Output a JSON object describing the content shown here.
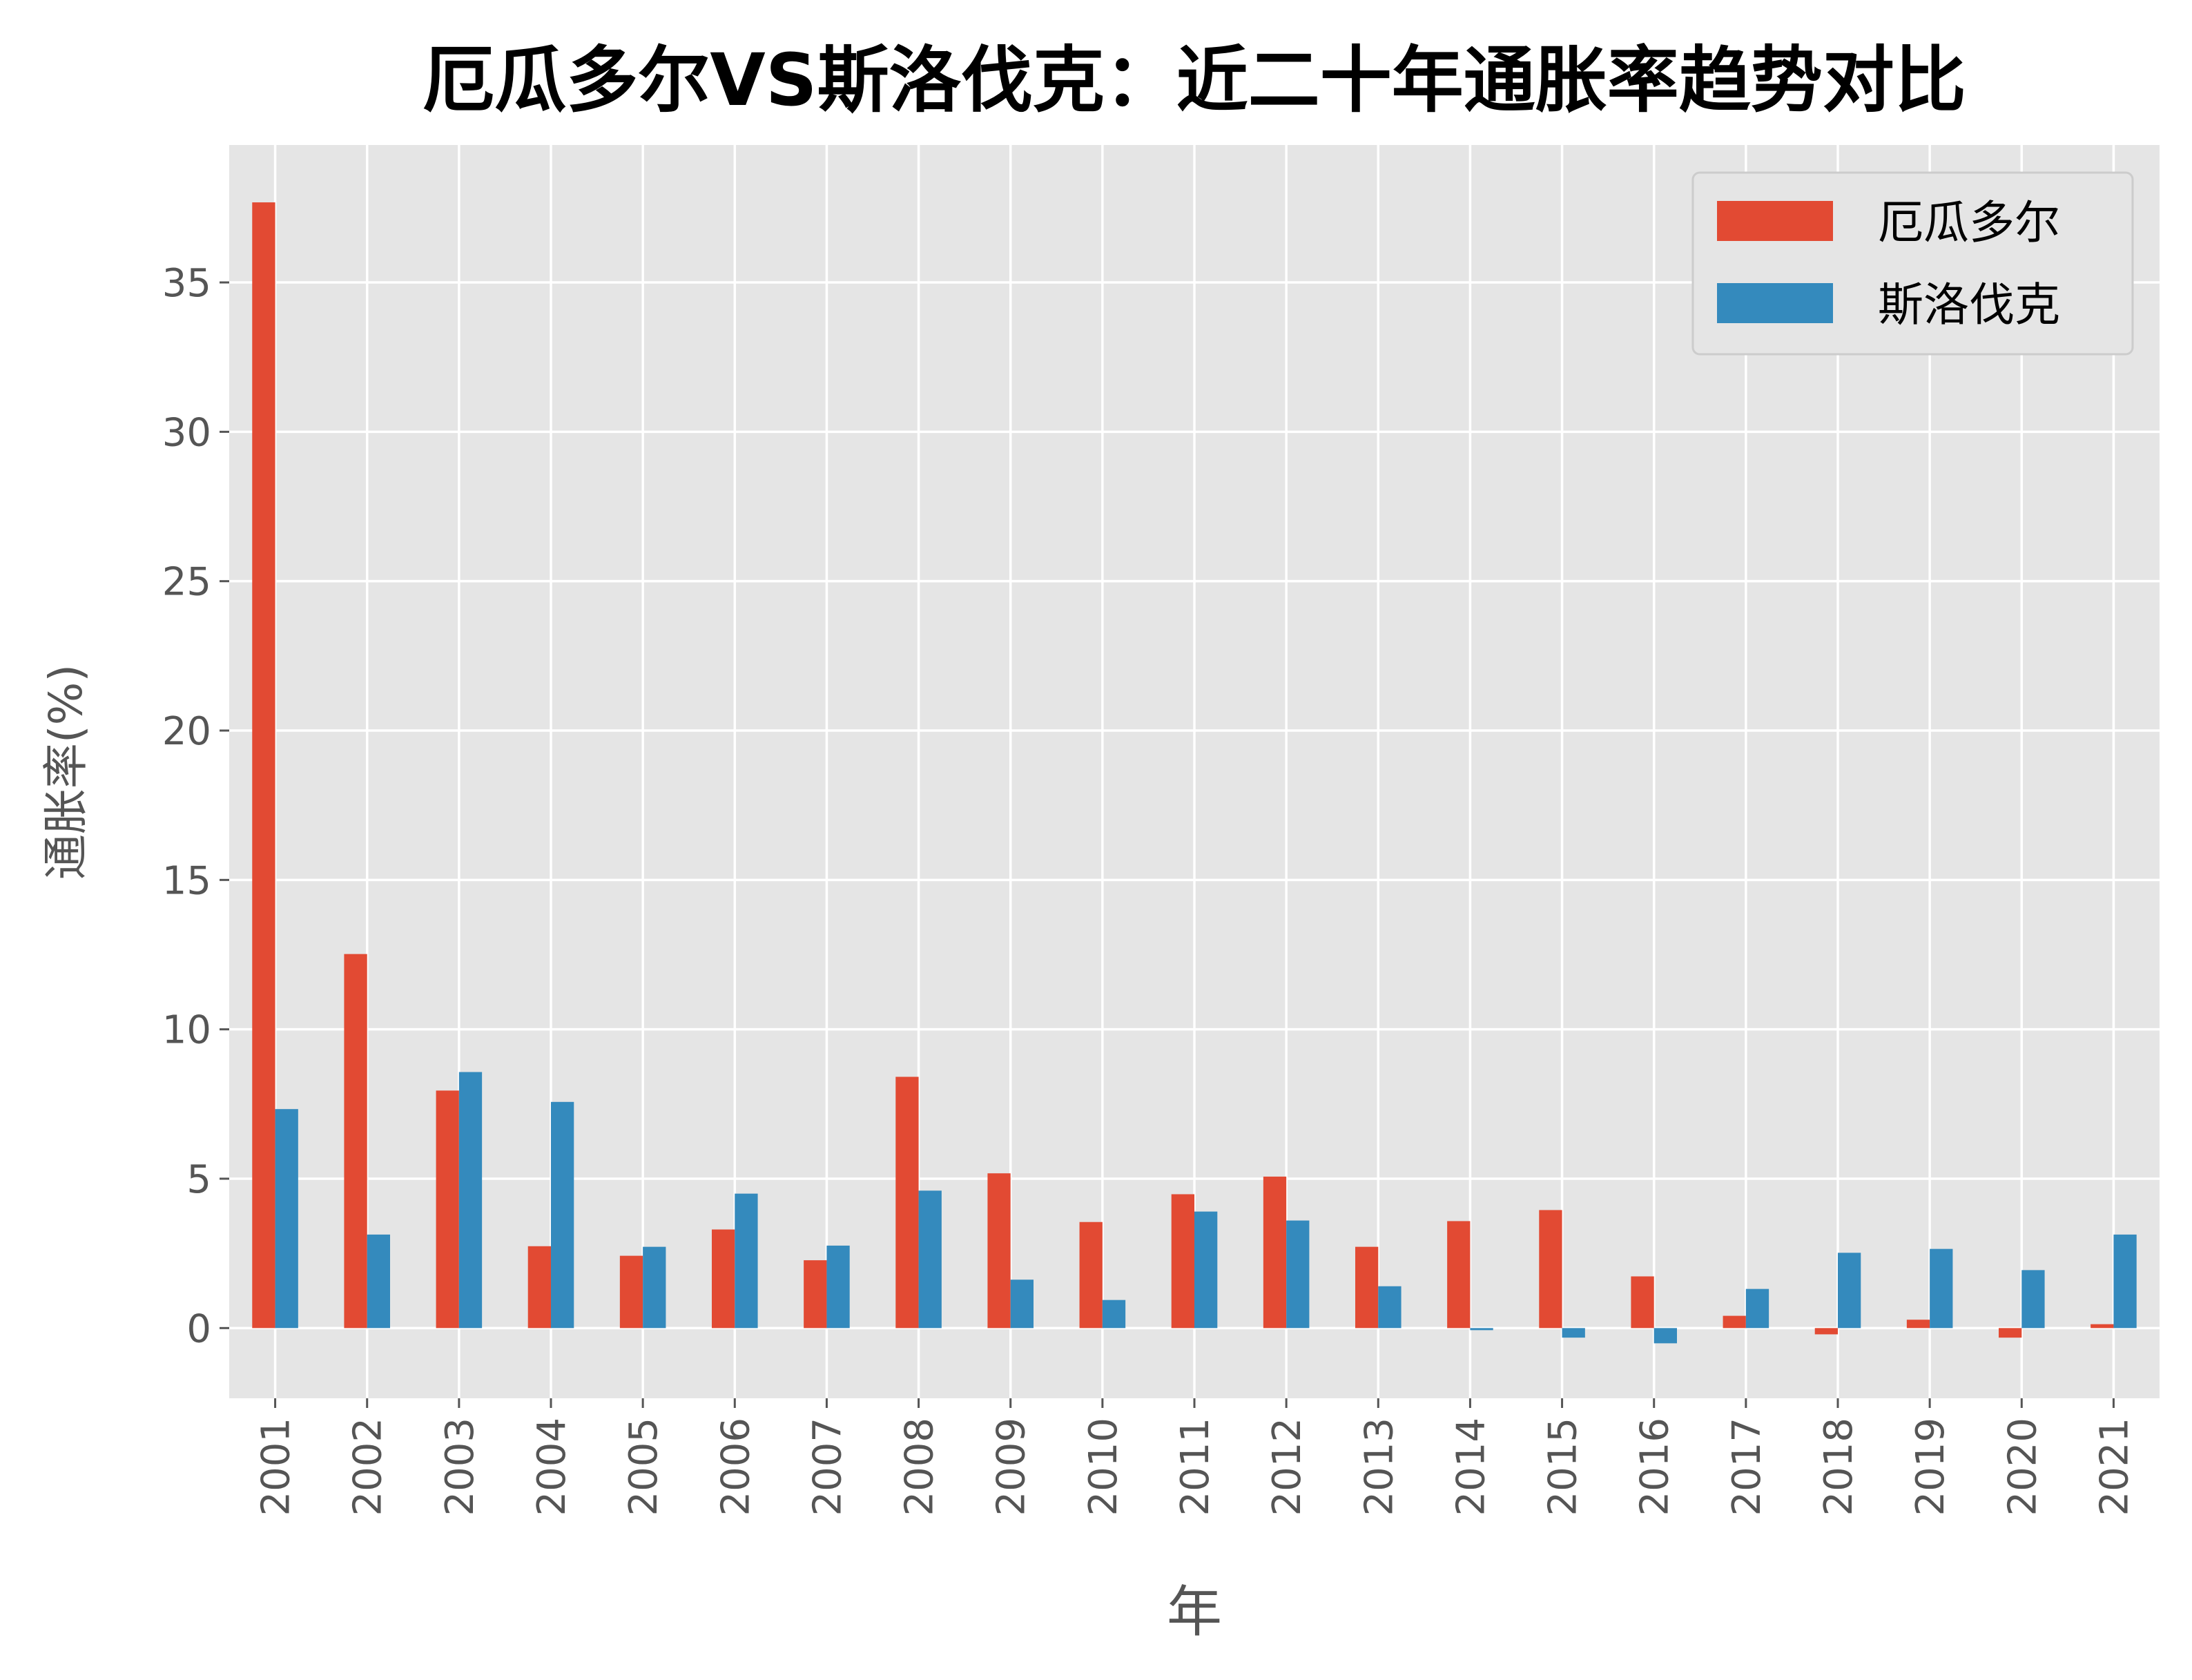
{
  "chart_data": {
    "type": "bar",
    "title": "厄瓜多尔VS斯洛伐克：近二十年通胀率趋势对比",
    "xlabel": "年",
    "ylabel": "通胀率(%)",
    "categories": [
      "2001",
      "2002",
      "2003",
      "2004",
      "2005",
      "2006",
      "2007",
      "2008",
      "2009",
      "2010",
      "2011",
      "2012",
      "2013",
      "2014",
      "2015",
      "2016",
      "2017",
      "2018",
      "2019",
      "2020",
      "2021"
    ],
    "series": [
      {
        "name": "厄瓜多尔",
        "color": "#E24A33",
        "values": [
          37.68,
          12.52,
          7.95,
          2.74,
          2.42,
          3.3,
          2.27,
          8.41,
          5.18,
          3.55,
          4.48,
          5.07,
          2.72,
          3.58,
          3.95,
          1.73,
          0.41,
          -0.21,
          0.28,
          -0.32,
          0.13
        ]
      },
      {
        "name": "斯洛伐克",
        "color": "#348ABD",
        "values": [
          7.33,
          3.13,
          8.57,
          7.57,
          2.72,
          4.5,
          2.76,
          4.6,
          1.62,
          0.94,
          3.9,
          3.6,
          1.4,
          -0.07,
          -0.32,
          -0.51,
          1.31,
          2.52,
          2.65,
          1.94,
          3.13
        ]
      }
    ],
    "ylim": [
      -2.35,
      39.6
    ],
    "yticks": [
      0,
      5,
      10,
      15,
      20,
      25,
      30,
      35
    ],
    "grid": true,
    "legend": "top-right",
    "style": {
      "background": "#E5E5E5",
      "grid_color": "#FFFFFF"
    }
  }
}
